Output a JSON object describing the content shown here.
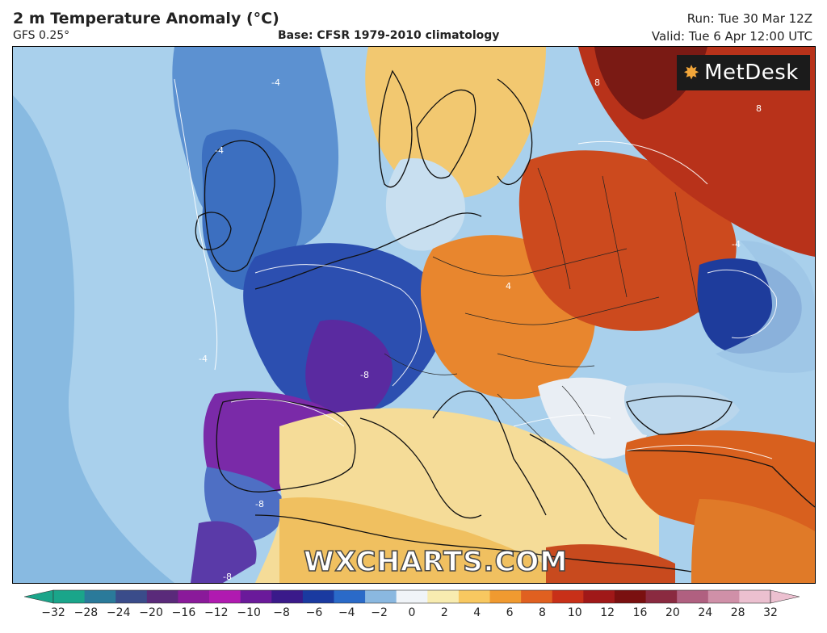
{
  "header": {
    "title": "2 m Temperature Anomaly (°C)",
    "model": "GFS 0.25°",
    "base": "Base: CFSR 1979-2010 climatology",
    "run": "Run: Tue 30 Mar 12Z",
    "valid": "Valid: Tue 6 Apr 12:00 UTC"
  },
  "logo": {
    "text": "MetDesk",
    "icon": "metdesk-star-icon"
  },
  "watermark": "WXCHARTS.COM",
  "colorbar": {
    "ticks": [
      "−32",
      "−28",
      "−24",
      "−20",
      "−16",
      "−12",
      "−10",
      "−8",
      "−6",
      "−4",
      "−2",
      "0",
      "2",
      "4",
      "6",
      "8",
      "10",
      "12",
      "16",
      "20",
      "24",
      "28",
      "32"
    ],
    "colors": [
      "#1aa58a",
      "#2a7a9a",
      "#3a4c8a",
      "#5a2a7a",
      "#8a1a9a",
      "#b01ab0",
      "#6a1a9a",
      "#3a1a8a",
      "#1a3aa0",
      "#2a6ac8",
      "#8ab8e0",
      "#f0f4f8",
      "#f8ecb0",
      "#f8c860",
      "#f09a30",
      "#e06020",
      "#c83018",
      "#a01818",
      "#7a1010",
      "#8a2a40",
      "#b06080",
      "#d090a8",
      "#ecc0d0"
    ]
  },
  "map": {
    "regions": [
      {
        "name": "atlantic-cool",
        "color": "#8fc3e6"
      },
      {
        "name": "atlantic-deep",
        "color": "#5e9fd4"
      },
      {
        "name": "uk-cold",
        "color": "#3c6fc0"
      },
      {
        "name": "france-cold",
        "color": "#2c4fb0"
      },
      {
        "name": "iberia-very-cold",
        "color": "#7a2aa8"
      },
      {
        "name": "mediterranean-warm",
        "color": "#f5dc98"
      },
      {
        "name": "central-europe-warm",
        "color": "#e8862e"
      },
      {
        "name": "east-europe-hot",
        "color": "#cc4a1e"
      },
      {
        "name": "russia-very-hot",
        "color": "#b8321a"
      },
      {
        "name": "turkey-warm",
        "color": "#d8601e"
      },
      {
        "name": "russia-cold-low",
        "color": "#1e3c9c"
      },
      {
        "name": "scandinavia-mixed",
        "color": "#f2c870"
      }
    ]
  }
}
